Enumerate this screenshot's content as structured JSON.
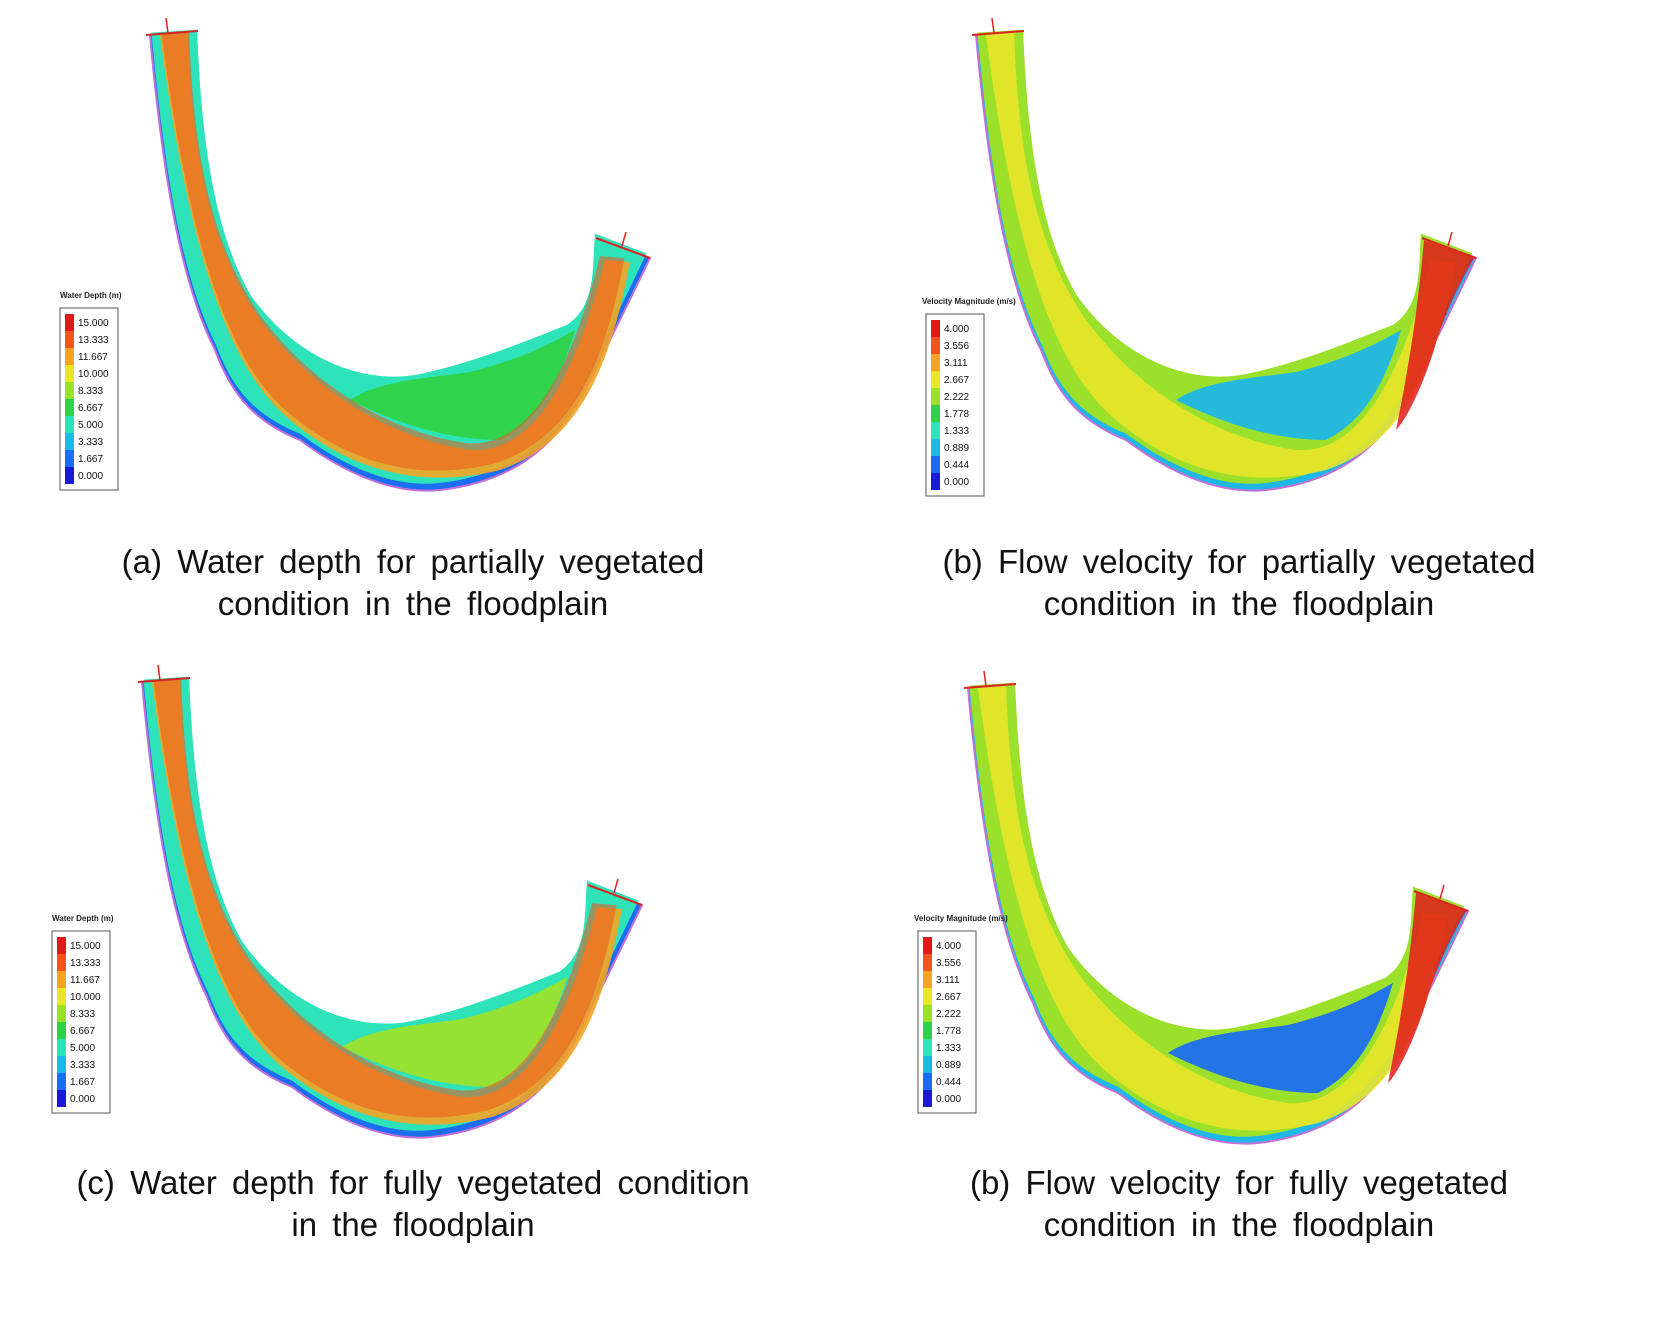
{
  "panels": [
    {
      "legend_title": "Water Depth (m)",
      "ticks": [
        "15.000",
        "13.333",
        "11.667",
        "10.000",
        "8.333",
        "6.667",
        "5.000",
        "3.333",
        "1.667",
        "0.000"
      ],
      "caption": [
        "(a) Water depth for partially vegetated",
        "condition in the floodplain"
      ]
    },
    {
      "legend_title": "Velocity Magnitude (m/s)",
      "ticks": [
        "4.000",
        "3.556",
        "3.111",
        "2.667",
        "2.222",
        "1.778",
        "1.333",
        "0.889",
        "0.444",
        "0.000"
      ],
      "caption": [
        "(b) Flow velocity for partially vegetated",
        "condition in the floodplain"
      ]
    },
    {
      "legend_title": "Water Depth (m)",
      "ticks": [
        "15.000",
        "13.333",
        "11.667",
        "10.000",
        "8.333",
        "6.667",
        "5.000",
        "3.333",
        "1.667",
        "0.000"
      ],
      "caption": [
        "(c) Water depth for fully vegetated condition",
        "in the floodplain"
      ]
    },
    {
      "legend_title": "Velocity Magnitude (m/s)",
      "ticks": [
        "4.000",
        "3.556",
        "3.111",
        "2.667",
        "2.222",
        "1.778",
        "1.333",
        "0.889",
        "0.444",
        "0.000"
      ],
      "caption": [
        "(b) Flow velocity for fully vegetated",
        "condition in the floodplain"
      ]
    }
  ],
  "colors": {
    "scale": [
      "#e01a1a",
      "#f0561c",
      "#f5a324",
      "#e9e62a",
      "#9be12c",
      "#2fd246",
      "#2ee3b9",
      "#1fb7e6",
      "#1c6ef0",
      "#1a1ad2"
    ],
    "boundary": "#d22",
    "bank": "#c46fd6"
  }
}
